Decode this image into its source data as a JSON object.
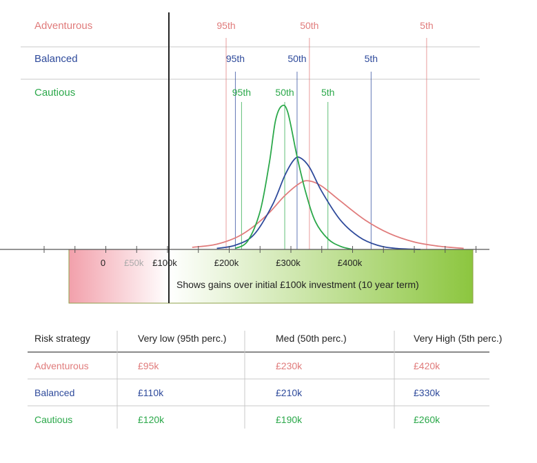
{
  "chart_data": {
    "type": "line",
    "title": "",
    "xlabel": "",
    "ylabel": "",
    "x_tick_labels": [
      {
        "value": -100,
        "label": "0"
      },
      {
        "value": -50,
        "label": "£50k"
      },
      {
        "value": 0,
        "label": "£100k"
      },
      {
        "value": 100,
        "label": "£200k"
      },
      {
        "value": 200,
        "label": "£300k"
      },
      {
        "value": 300,
        "label": "£400k"
      }
    ],
    "axis_band_caption": "Shows gains over initial £100k investment (10 year term)",
    "series": [
      {
        "name": "Adventurous",
        "color": "#e07b7b",
        "percentiles": [
          {
            "label": "95th",
            "value": 95
          },
          {
            "label": "50th",
            "value": 230
          },
          {
            "label": "5th",
            "value": 420
          }
        ],
        "curve": [
          [
            40,
            2
          ],
          [
            80,
            5
          ],
          [
            120,
            14
          ],
          [
            160,
            32
          ],
          [
            190,
            51
          ],
          [
            215,
            63
          ],
          [
            230,
            65
          ],
          [
            250,
            60
          ],
          [
            280,
            46
          ],
          [
            320,
            28
          ],
          [
            360,
            15
          ],
          [
            400,
            7
          ],
          [
            440,
            3
          ],
          [
            480,
            1
          ]
        ]
      },
      {
        "name": "Balanced",
        "color": "#2e4a9b",
        "percentiles": [
          {
            "label": "95th",
            "value": 110
          },
          {
            "label": "50th",
            "value": 210
          },
          {
            "label": "5th",
            "value": 330
          }
        ],
        "curve": [
          [
            80,
            1
          ],
          [
            110,
            4
          ],
          [
            140,
            14
          ],
          [
            170,
            42
          ],
          [
            190,
            70
          ],
          [
            205,
            85
          ],
          [
            215,
            87
          ],
          [
            230,
            78
          ],
          [
            250,
            55
          ],
          [
            280,
            28
          ],
          [
            310,
            12
          ],
          [
            340,
            4
          ],
          [
            370,
            1
          ],
          [
            410,
            0
          ]
        ]
      },
      {
        "name": "Cautious",
        "color": "#2ba84a",
        "percentiles": [
          {
            "label": "95th",
            "value": 120
          },
          {
            "label": "50th",
            "value": 190
          },
          {
            "label": "5th",
            "value": 260
          }
        ],
        "curve": [
          [
            110,
            1
          ],
          [
            130,
            8
          ],
          [
            150,
            36
          ],
          [
            165,
            82
          ],
          [
            175,
            122
          ],
          [
            185,
            136
          ],
          [
            195,
            130
          ],
          [
            210,
            88
          ],
          [
            225,
            52
          ],
          [
            240,
            26
          ],
          [
            260,
            10
          ],
          [
            280,
            3
          ],
          [
            300,
            0
          ]
        ]
      }
    ],
    "table": {
      "headers": [
        "Risk strategy",
        "Very low (95th perc.)",
        "Med (50th perc.)",
        "Very High (5th perc.)"
      ],
      "rows": [
        {
          "name": "Adventurous",
          "color": "#e07b7b",
          "cells": [
            "£95k",
            "£230k",
            "£420k"
          ]
        },
        {
          "name": "Balanced",
          "color": "#2e4a9b",
          "cells": [
            "£110k",
            "£210k",
            "£330k"
          ]
        },
        {
          "name": "Cautious",
          "color": "#2ba84a",
          "cells": [
            "£120k",
            "£190k",
            "£260k"
          ]
        }
      ]
    }
  }
}
